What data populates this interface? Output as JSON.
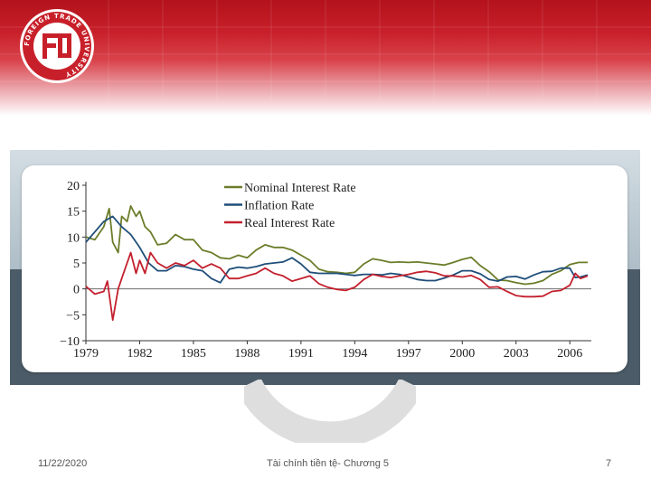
{
  "footer": {
    "date": "11/22/2020",
    "course": "Tài chính tiền tệ- Chương 5",
    "page": "7"
  },
  "logo": {
    "text": "FOREIGN TRADE UNIVERSITY",
    "mark": "FTU"
  },
  "colors": {
    "banner": "#c8202a",
    "nominal": "#6b7d2a",
    "inflation": "#1f4e79",
    "real": "#c3202e",
    "slab": "#4b5c68"
  },
  "chart_data": {
    "type": "line",
    "title": "",
    "xlabel": "",
    "ylabel": "",
    "xlim": [
      1979,
      2007.2
    ],
    "ylim": [
      -10,
      20
    ],
    "yticks": [
      20,
      15,
      10,
      5,
      0,
      -5,
      -10
    ],
    "yticklabels": [
      "20",
      "15",
      "10",
      "5",
      "0",
      "−5",
      "−10"
    ],
    "xticks": [
      1979,
      1982,
      1985,
      1988,
      1991,
      1994,
      1997,
      2000,
      2003,
      2006
    ],
    "xticklabels": [
      "1979",
      "1982",
      "1985",
      "1988",
      "1991",
      "1994",
      "1997",
      "2000",
      "2003",
      "2006"
    ],
    "zero_line": true,
    "legend_position": "top-center",
    "series": [
      {
        "name": "Nominal Interest Rate",
        "color": "#6b7d2a",
        "x": [
          1979,
          1979.5,
          1980,
          1980.3,
          1980.5,
          1980.8,
          1981,
          1981.3,
          1981.5,
          1981.8,
          1982,
          1982.3,
          1982.6,
          1983,
          1983.5,
          1984,
          1984.5,
          1985,
          1985.5,
          1986,
          1986.5,
          1987,
          1987.5,
          1988,
          1988.5,
          1989,
          1989.5,
          1990,
          1990.5,
          1991,
          1991.5,
          1992,
          1992.5,
          1993,
          1993.5,
          1994,
          1994.5,
          1995,
          1995.5,
          1996,
          1996.5,
          1997,
          1997.5,
          1998,
          1998.5,
          1999,
          1999.5,
          2000,
          2000.5,
          2001,
          2001.5,
          2002,
          2002.5,
          2003,
          2003.5,
          2004,
          2004.5,
          2005,
          2005.5,
          2006,
          2006.5,
          2007
        ],
        "y": [
          10,
          9.5,
          12,
          15.5,
          9,
          7,
          14,
          13,
          16,
          14,
          15,
          12,
          11,
          8.5,
          8.8,
          10.5,
          9.5,
          9.5,
          7.5,
          7,
          6,
          5.8,
          6.5,
          6,
          7.5,
          8.5,
          8,
          8,
          7.5,
          6.5,
          5.5,
          3.8,
          3.3,
          3.2,
          3,
          3.2,
          4.8,
          5.8,
          5.5,
          5.1,
          5.2,
          5.1,
          5.2,
          5,
          4.8,
          4.6,
          5.1,
          5.7,
          6.1,
          4.5,
          3.3,
          1.7,
          1.6,
          1.2,
          0.9,
          1.1,
          1.6,
          2.8,
          3.5,
          4.7,
          5.1,
          5.1
        ]
      },
      {
        "name": "Inflation Rate",
        "color": "#1f4e79",
        "x": [
          1979,
          1979.5,
          1980,
          1980.5,
          1981,
          1981.5,
          1982,
          1982.5,
          1983,
          1983.5,
          1984,
          1984.5,
          1985,
          1985.5,
          1986,
          1986.5,
          1987,
          1987.5,
          1988,
          1988.5,
          1989,
          1989.5,
          1990,
          1990.5,
          1991,
          1991.5,
          1992,
          1992.5,
          1993,
          1993.5,
          1994,
          1994.5,
          1995,
          1995.5,
          1996,
          1996.5,
          1997,
          1997.5,
          1998,
          1998.5,
          1999,
          1999.5,
          2000,
          2000.5,
          2001,
          2001.5,
          2002,
          2002.5,
          2003,
          2003.5,
          2004,
          2004.5,
          2005,
          2005.5,
          2006,
          2006.3,
          2006.6,
          2007
        ],
        "y": [
          9,
          11,
          13,
          14,
          12,
          10.5,
          8,
          5,
          3.5,
          3.5,
          4.5,
          4.3,
          3.8,
          3.5,
          2,
          1.2,
          3.8,
          4.2,
          4,
          4.3,
          4.8,
          5,
          5.2,
          6,
          4.8,
          3.2,
          3,
          3,
          3,
          2.8,
          2.6,
          2.8,
          2.8,
          2.7,
          3,
          2.8,
          2.3,
          1.8,
          1.6,
          1.6,
          2.1,
          2.7,
          3.5,
          3.5,
          2.9,
          1.8,
          1.5,
          2.3,
          2.4,
          1.9,
          2.7,
          3.3,
          3.4,
          4,
          4,
          2.2,
          2.3,
          2.7
        ]
      },
      {
        "name": "Real Interest Rate",
        "color": "#c3202e",
        "x": [
          1979,
          1979.5,
          1980,
          1980.2,
          1980.5,
          1980.8,
          1981,
          1981.5,
          1981.8,
          1982,
          1982.3,
          1982.6,
          1983,
          1983.5,
          1984,
          1984.5,
          1985,
          1985.5,
          1986,
          1986.5,
          1987,
          1987.5,
          1988,
          1988.5,
          1989,
          1989.5,
          1990,
          1990.5,
          1991,
          1991.5,
          1992,
          1992.5,
          1993,
          1993.5,
          1994,
          1994.5,
          1995,
          1995.5,
          1996,
          1996.5,
          1997,
          1997.5,
          1998,
          1998.5,
          1999,
          1999.5,
          2000,
          2000.5,
          2001,
          2001.5,
          2002,
          2002.5,
          2003,
          2003.5,
          2004,
          2004.5,
          2005,
          2005.5,
          2006,
          2006.3,
          2006.6,
          2007
        ],
        "y": [
          0.5,
          -1,
          -0.5,
          1.5,
          -6,
          0,
          2,
          7,
          3,
          5.5,
          3,
          7,
          5,
          4,
          5,
          4.5,
          5.5,
          4,
          4.8,
          4,
          2,
          2,
          2.5,
          3,
          4,
          3,
          2.5,
          1.5,
          2,
          2.5,
          1,
          0.3,
          -0.1,
          -0.3,
          0.3,
          1.8,
          2.8,
          2.4,
          2.2,
          2.5,
          2.8,
          3.2,
          3.4,
          3.1,
          2.5,
          2.5,
          2.3,
          2.6,
          1.8,
          0.3,
          0.4,
          -0.5,
          -1.3,
          -1.5,
          -1.5,
          -1.4,
          -0.5,
          -0.3,
          0.7,
          3,
          2,
          2.5
        ]
      }
    ]
  }
}
